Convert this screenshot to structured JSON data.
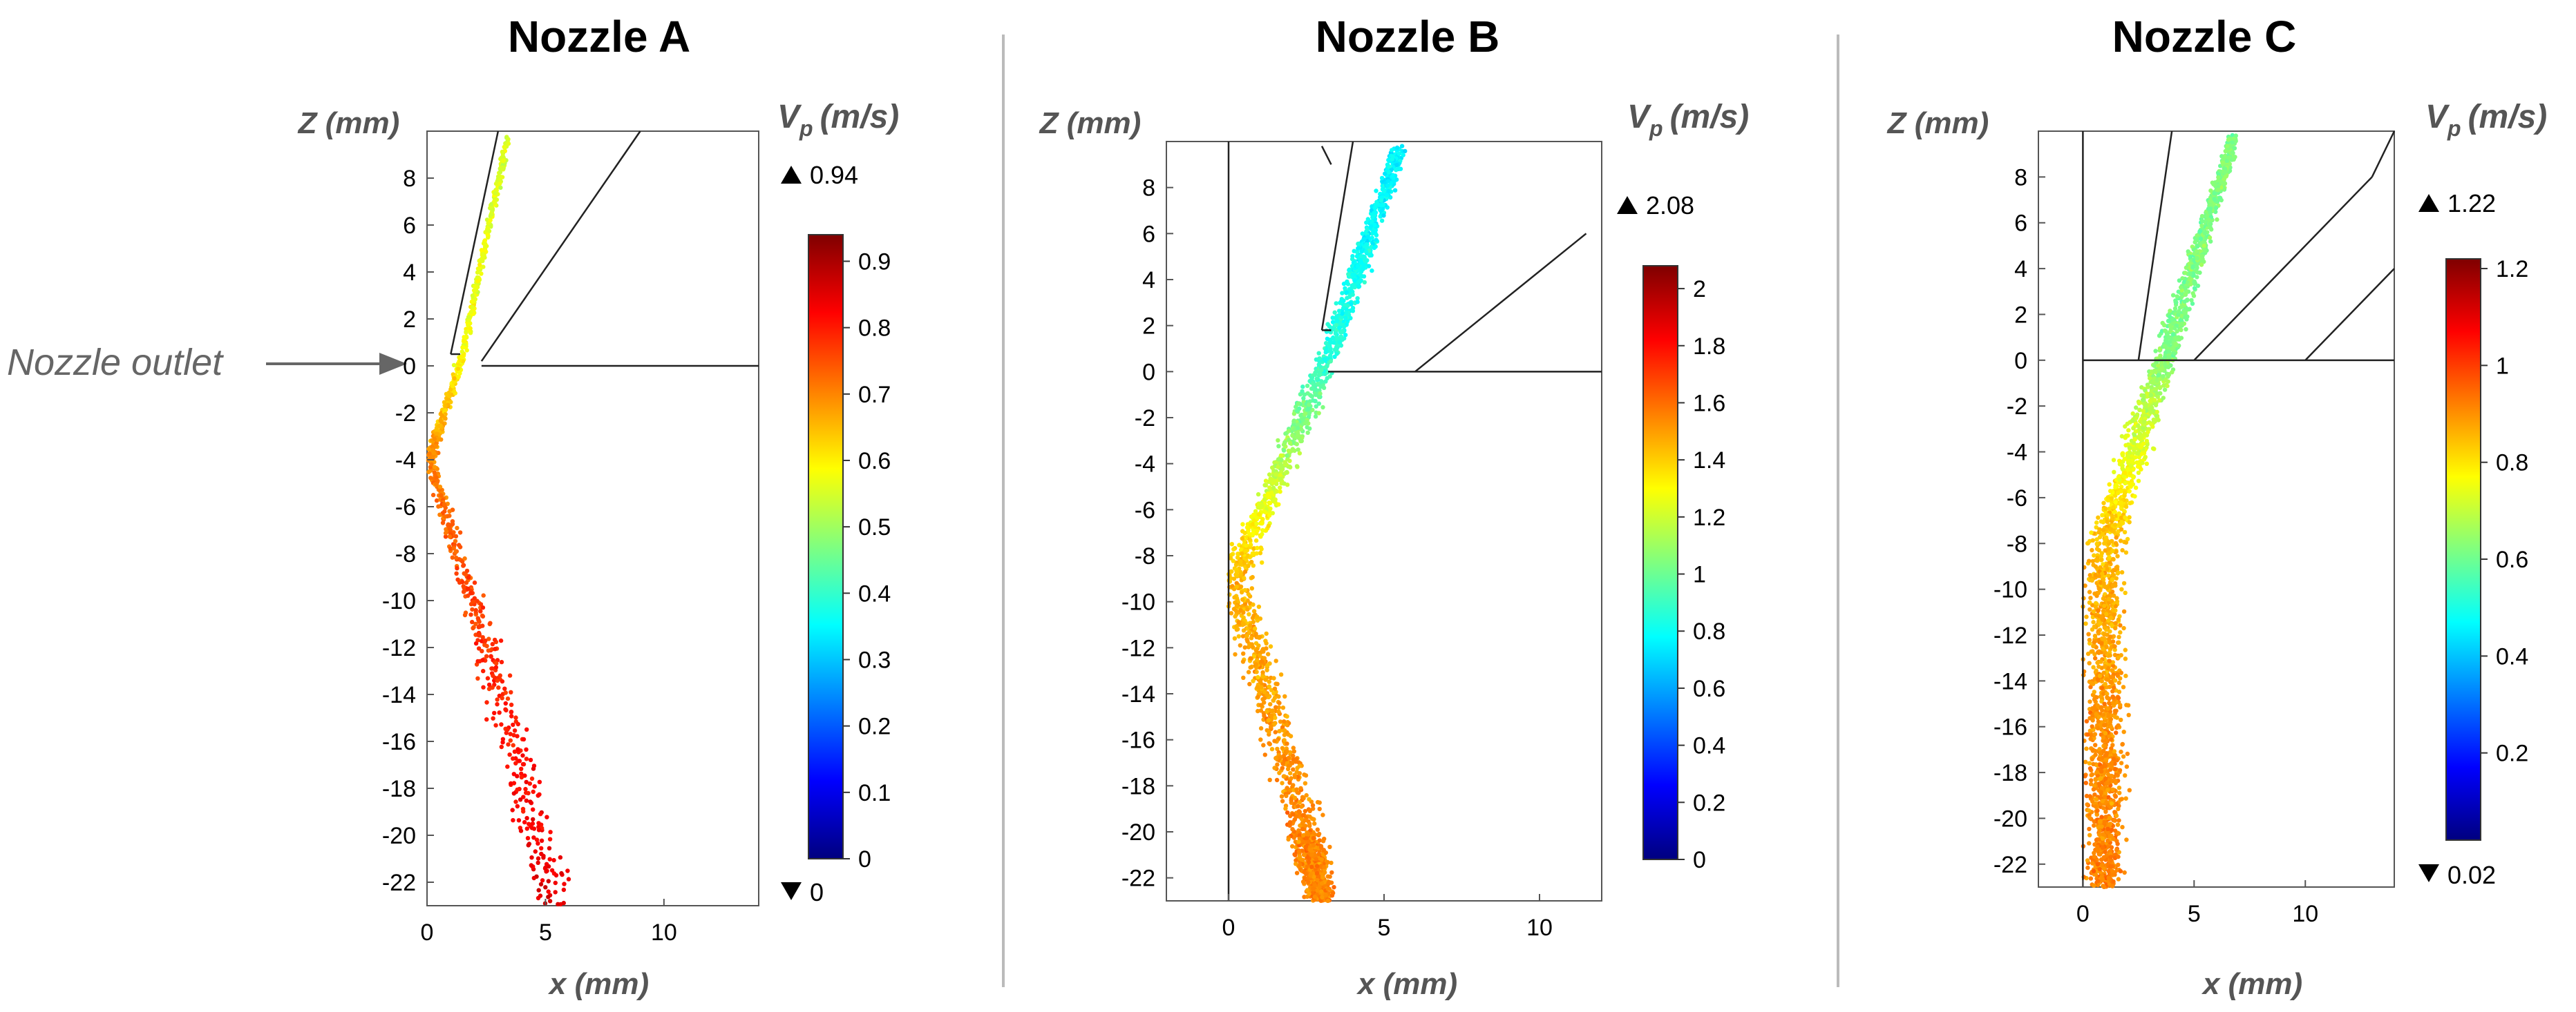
{
  "annotation": {
    "label": "Nozzle outlet"
  },
  "chart_data": [
    {
      "type": "scatter",
      "title": "Nozzle A",
      "xlabel": "x (mm)",
      "ylabel": "Z (mm)",
      "xlim": [
        0,
        14
      ],
      "ylim": [
        -23,
        10
      ],
      "xticks": [
        0,
        5,
        10
      ],
      "yticks": [
        8,
        6,
        4,
        2,
        0,
        -2,
        -4,
        -6,
        -8,
        -10,
        -12,
        -14,
        -16,
        -18,
        -20,
        -22
      ],
      "colorbar": {
        "label": "V",
        "label_sub": "p",
        "label_unit": "(m/s)",
        "min": 0,
        "max": 0.94,
        "max_label": "0.94",
        "min_label": "0",
        "ticks": [
          0.9,
          0.8,
          0.7,
          0.6,
          0.5,
          0.4,
          0.3,
          0.2,
          0.1,
          0
        ]
      },
      "geometry": [
        [
          [
            1.0,
            0.5
          ],
          [
            3.0,
            10.0
          ]
        ],
        [
          [
            1.0,
            0.5
          ],
          [
            1.4,
            0.5
          ]
        ],
        [
          [
            2.3,
            0.2
          ],
          [
            9.0,
            10.0
          ]
        ],
        [
          [
            2.3,
            0.0
          ],
          [
            14.0,
            0.0
          ]
        ]
      ],
      "trajectory": {
        "points": [
          [
            3.4,
            9.7
          ],
          [
            1.5,
            0.5
          ],
          [
            0.1,
            -4.0
          ],
          [
            2.5,
            -12.0
          ],
          [
            5.5,
            -23.0
          ]
        ],
        "speeds": [
          0.55,
          0.58,
          0.7,
          0.78,
          0.85
        ],
        "spread": [
          0.15,
          0.2,
          0.3,
          0.8,
          1.4
        ],
        "count": 900
      }
    },
    {
      "type": "scatter",
      "title": "Nozzle B",
      "xlabel": "x (mm)",
      "ylabel": "Z (mm)",
      "xlim": [
        -2,
        12
      ],
      "ylim": [
        -23,
        10
      ],
      "xticks": [
        0,
        5,
        10
      ],
      "yticks": [
        8,
        6,
        4,
        2,
        0,
        -2,
        -4,
        -6,
        -8,
        -10,
        -12,
        -14,
        -16,
        -18,
        -20,
        -22
      ],
      "colorbar": {
        "label": "V",
        "label_sub": "p",
        "label_unit": "(m/s)",
        "min": 0,
        "max": 2.08,
        "max_label": "2.08",
        "min_label": "",
        "ticks": [
          2,
          1.8,
          1.6,
          1.4,
          1.2,
          1,
          0.8,
          0.6,
          0.4,
          0.2,
          0
        ]
      },
      "geometry": [
        [
          [
            0,
            -23.0
          ],
          [
            0,
            10.0
          ]
        ],
        [
          [
            3.0,
            1.8
          ],
          [
            4.0,
            10.0
          ]
        ],
        [
          [
            3.0,
            1.8
          ],
          [
            3.3,
            1.8
          ]
        ],
        [
          [
            3.2,
            0.0
          ],
          [
            12.0,
            0.0
          ]
        ],
        [
          [
            6.0,
            0.0
          ],
          [
            11.5,
            6.0
          ]
        ],
        [
          [
            3.0,
            9.8
          ],
          [
            3.3,
            9.0
          ]
        ]
      ],
      "trajectory": {
        "points": [
          [
            5.5,
            9.7
          ],
          [
            3.3,
            1.0
          ],
          [
            0.2,
            -9.0
          ],
          [
            2.5,
            -20.0
          ],
          [
            3.0,
            -23.0
          ]
        ],
        "speeds": [
          0.75,
          0.85,
          1.45,
          1.55,
          1.55
        ],
        "spread": [
          0.35,
          0.5,
          0.7,
          0.8,
          0.6
        ],
        "count": 2200
      }
    },
    {
      "type": "scatter",
      "title": "Nozzle C",
      "xlabel": "x (mm)",
      "ylabel": "Z (mm)",
      "xlim": [
        -2,
        14
      ],
      "ylim": [
        -23,
        10
      ],
      "xticks": [
        0,
        5,
        10
      ],
      "yticks": [
        8,
        6,
        4,
        2,
        0,
        -2,
        -4,
        -6,
        -8,
        -10,
        -12,
        -14,
        -16,
        -18,
        -20,
        -22
      ],
      "colorbar": {
        "label": "V",
        "label_sub": "p",
        "label_unit": "(m/s)",
        "min": 0.02,
        "max": 1.22,
        "max_label": "1.22",
        "min_label": "0.02",
        "ticks": [
          1.2,
          1,
          0.8,
          0.6,
          0.4,
          0.2
        ]
      },
      "geometry": [
        [
          [
            0,
            -23.0
          ],
          [
            0,
            10.0
          ]
        ],
        [
          [
            2.5,
            0.0
          ],
          [
            4.0,
            10.0
          ]
        ],
        [
          [
            5.0,
            0.0
          ],
          [
            13.0,
            8.0
          ]
        ],
        [
          [
            13.0,
            8.0
          ],
          [
            14.0,
            10.0
          ]
        ],
        [
          [
            10.0,
            0.0
          ],
          [
            14.0,
            4.0
          ]
        ],
        [
          [
            0,
            0.0
          ],
          [
            14.0,
            0.0
          ]
        ]
      ],
      "trajectory": {
        "points": [
          [
            6.8,
            9.7
          ],
          [
            3.8,
            0.5
          ],
          [
            1.0,
            -8.0
          ],
          [
            1.0,
            -16.0
          ],
          [
            1.0,
            -23.0
          ]
        ],
        "speeds": [
          0.62,
          0.62,
          0.85,
          0.9,
          0.92
        ],
        "spread": [
          0.35,
          0.8,
          1.2,
          1.2,
          1.1
        ],
        "count": 2400
      }
    }
  ]
}
